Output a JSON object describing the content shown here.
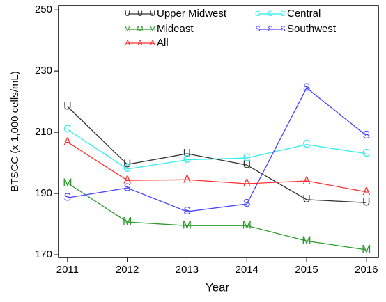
{
  "chart_data": {
    "type": "line",
    "x_label": "Year",
    "y_label": "BTSCC (x 1,000 cells/mL)",
    "x": [
      2011,
      2012,
      2013,
      2014,
      2015,
      2016
    ],
    "xlim": [
      2010.85,
      2016.2
    ],
    "xticks": [
      2011,
      2012,
      2013,
      2014,
      2015,
      2016
    ],
    "ylim": [
      169.1,
      251.4
    ],
    "yticks": [
      170,
      190,
      210,
      230,
      250
    ],
    "series": [
      {
        "name": "Upper Midwest",
        "marker": "U",
        "color": "#333333",
        "values": [
          218.4,
          199.5,
          203,
          199.3,
          188,
          187
        ]
      },
      {
        "name": "Mideast",
        "marker": "M",
        "color": "#2a9a2a",
        "values": [
          193.4,
          180.7,
          179.5,
          179.5,
          174.5,
          171.6
        ]
      },
      {
        "name": "All",
        "marker": "A",
        "color": "#ff3030",
        "values": [
          206.8,
          194.3,
          194.5,
          193.2,
          194.1,
          190.5
        ]
      },
      {
        "name": "Central",
        "marker": "C",
        "color": "#33eeee",
        "values": [
          210.9,
          198,
          201,
          201.6,
          206,
          203
        ]
      },
      {
        "name": "Southwest",
        "marker": "S",
        "color": "#4444ff",
        "values": [
          188.6,
          191.8,
          184.1,
          186.6,
          224.5,
          208.9
        ]
      }
    ]
  }
}
